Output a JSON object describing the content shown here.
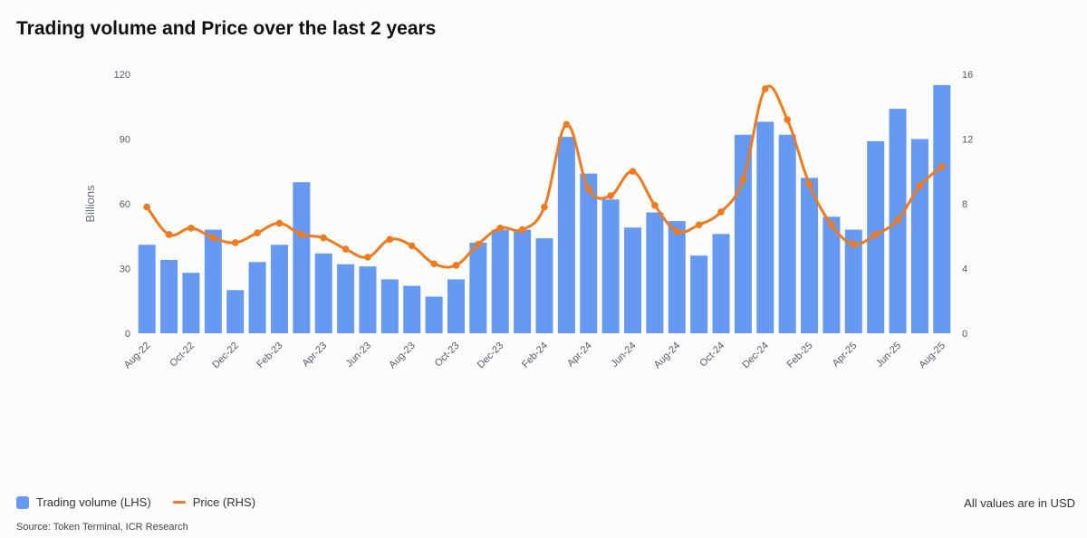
{
  "header": {
    "title": "Trading volume and Price over the last 2 years"
  },
  "legend": {
    "volume_label": "Trading volume (LHS)",
    "price_label": "Price (RHS)"
  },
  "footer": {
    "note": "All values are in USD",
    "source": "Source: Token Terminal, ICR Research"
  },
  "colors": {
    "bar": "#6699f2",
    "line": "#f07a1c"
  },
  "chart_data": {
    "type": "bar",
    "x": [
      "Aug-22",
      "Sep-22",
      "Oct-22",
      "Nov-22",
      "Dec-22",
      "Jan-23",
      "Feb-23",
      "Mar-23",
      "Apr-23",
      "May-23",
      "Jun-23",
      "Jul-23",
      "Aug-23",
      "Sep-23",
      "Oct-23",
      "Nov-23",
      "Dec-23",
      "Jan-24",
      "Feb-24",
      "Mar-24",
      "Apr-24",
      "May-24",
      "Jun-24",
      "Jul-24",
      "Aug-24",
      "Sep-24",
      "Oct-24",
      "Nov-24",
      "Dec-24",
      "Jan-25",
      "Feb-25",
      "Mar-25",
      "Apr-25",
      "May-25",
      "Jun-25",
      "Jul-25",
      "Aug-25"
    ],
    "tick_labels": [
      "Aug-22",
      "Oct-22",
      "Dec-22",
      "Feb-23",
      "Apr-23",
      "Jun-23",
      "Aug-23",
      "Oct-23",
      "Dec-23",
      "Feb-24",
      "Apr-24",
      "Jun-24",
      "Aug-24",
      "Oct-24",
      "Dec-24",
      "Feb-25",
      "Apr-25",
      "Jun-25",
      "Aug-25"
    ],
    "series": [
      {
        "name": "Trading volume (LHS)",
        "type": "bar",
        "axis": "left",
        "values": [
          41,
          34,
          28,
          48,
          20,
          33,
          41,
          70,
          37,
          32,
          31,
          25,
          22,
          17,
          25,
          42,
          48,
          48,
          44,
          91,
          74,
          62,
          49,
          56,
          52,
          36,
          46,
          92,
          98,
          92,
          72,
          54,
          48,
          89,
          104,
          90,
          115
        ]
      },
      {
        "name": "Price (RHS)",
        "type": "line",
        "axis": "right",
        "values": [
          7.8,
          6.1,
          6.5,
          5.9,
          5.6,
          6.2,
          6.8,
          6.1,
          5.9,
          5.2,
          4.7,
          5.8,
          5.4,
          4.3,
          4.2,
          5.5,
          6.5,
          6.4,
          7.8,
          12.9,
          8.9,
          8.5,
          10.0,
          7.9,
          6.3,
          6.7,
          7.5,
          9.5,
          15.1,
          13.2,
          9.2,
          6.7,
          5.5,
          6.1,
          7.0,
          9.1,
          10.3
        ]
      }
    ],
    "ylabel": "Billions",
    "ylim": [
      0,
      120
    ],
    "yticks": [
      0,
      30,
      60,
      90,
      120
    ],
    "y2lim": [
      0,
      16
    ],
    "y2ticks": [
      0,
      4,
      8,
      12,
      16
    ],
    "legend_position": "bottom-left",
    "grid": false
  }
}
